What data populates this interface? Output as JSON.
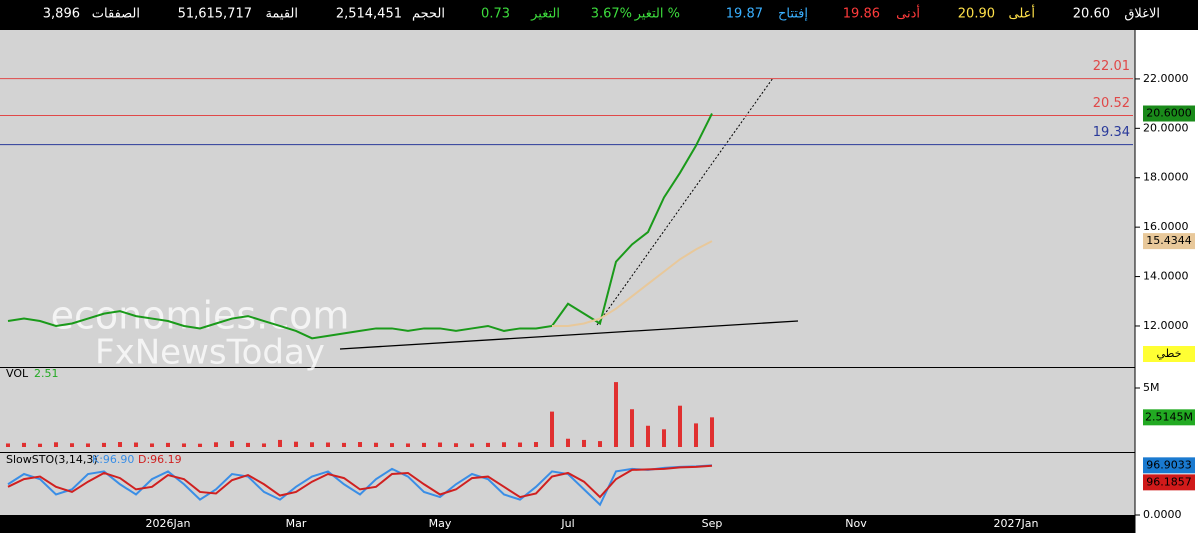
{
  "header": {
    "fields": [
      {
        "label": "الاغلاق",
        "value": "20.60",
        "color": "#ffffff"
      },
      {
        "label": "أعلى",
        "value": "20.90",
        "color": "#ffe14a"
      },
      {
        "label": "أدنى",
        "value": "19.86",
        "color": "#ff3b3b"
      },
      {
        "label": "إفتتاح",
        "value": "19.87",
        "color": "#3ab0ff"
      },
      {
        "label": "التغير %",
        "value": "3.67%",
        "color": "#3ddc3d"
      },
      {
        "label": "التغير",
        "value": "0.73",
        "color": "#3ddc3d"
      },
      {
        "label": "الحجم",
        "value": "2,514,451",
        "color": "#ffffff"
      },
      {
        "label": "القيمة",
        "value": "51,615,717",
        "color": "#ffffff"
      },
      {
        "label": "الصفقات",
        "value": "3,896",
        "color": "#ffffff"
      }
    ]
  },
  "watermark": [
    "economies.com",
    "FxNewsToday"
  ],
  "chart_data": [
    {
      "type": "line",
      "scale_mode": "خطي",
      "categories": [
        null,
        null,
        null,
        null,
        null,
        null,
        null,
        null,
        null,
        null,
        "2026Jan",
        null,
        null,
        null,
        null,
        null,
        null,
        null,
        "Mar",
        null,
        null,
        null,
        null,
        null,
        null,
        null,
        null,
        "May",
        null,
        null,
        null,
        null,
        null,
        null,
        null,
        "Jul",
        null,
        null,
        null,
        null,
        null,
        null,
        null,
        null,
        "Sep",
        null,
        null,
        null,
        null,
        null,
        null,
        null,
        null,
        "Nov",
        null,
        null,
        null,
        null,
        null,
        null,
        null,
        null,
        null,
        "2027Jan",
        null,
        null,
        null,
        null,
        null,
        null,
        null
      ],
      "series": [
        {
          "color": "#1a9a1a",
          "values": [
            12.2,
            12.3,
            12.2,
            12.0,
            12.1,
            12.3,
            12.5,
            12.6,
            12.4,
            12.3,
            12.2,
            12.0,
            11.9,
            12.1,
            12.3,
            12.4,
            12.2,
            12.0,
            11.8,
            11.5,
            11.6,
            11.7,
            11.8,
            11.9,
            11.9,
            11.8,
            11.9,
            11.9,
            11.8,
            11.9,
            12.0,
            11.8,
            11.9,
            11.9,
            12.0,
            12.9,
            12.5,
            12.1,
            14.6,
            15.3,
            15.8,
            17.2,
            18.2,
            19.3,
            20.6,
            null,
            null,
            null,
            null,
            null,
            null,
            null,
            null,
            null,
            null,
            null,
            null,
            null,
            null,
            null,
            null,
            null,
            null,
            null,
            null,
            null,
            null,
            null,
            null,
            null,
            null
          ]
        },
        {
          "color": "#e8c89a",
          "values": [
            null,
            null,
            null,
            null,
            null,
            null,
            null,
            null,
            null,
            null,
            null,
            null,
            null,
            null,
            null,
            null,
            null,
            null,
            null,
            null,
            null,
            null,
            null,
            null,
            null,
            null,
            null,
            null,
            null,
            null,
            null,
            null,
            null,
            null,
            12.0,
            12.0,
            12.1,
            12.3,
            12.7,
            13.2,
            13.7,
            14.2,
            14.7,
            15.1,
            15.4344,
            null,
            null,
            null,
            null,
            null,
            null,
            null,
            null,
            null,
            null,
            null,
            null,
            null,
            null,
            null,
            null,
            null,
            null,
            null,
            null,
            null,
            null,
            null,
            null,
            null,
            null
          ]
        }
      ],
      "hlines": [
        {
          "value": 22.01,
          "color": "#e04848"
        },
        {
          "value": 20.52,
          "color": "#e04848"
        },
        {
          "value": 19.34,
          "color": "#2a3a9a"
        }
      ],
      "tags": [
        {
          "value": 20.6,
          "label": "20.6000",
          "color": "#1a8a1a"
        },
        {
          "value": 15.4344,
          "label": "15.4344",
          "color": "#e8c89a"
        }
      ],
      "ylim": [
        10.38,
        23.98
      ],
      "yticks": [
        {
          "value": 12,
          "label": "12.0000"
        },
        {
          "value": 14,
          "label": "14.0000"
        },
        {
          "value": 16,
          "label": "16.0000"
        },
        {
          "value": 18,
          "label": "18.0000"
        },
        {
          "value": 20,
          "label": "20.0000"
        },
        {
          "value": 22,
          "label": "22.0000"
        }
      ]
    },
    {
      "type": "bar",
      "title": "VOL",
      "legend_value": {
        "value": 2510000,
        "label": "2.51"
      },
      "color": "#e03030",
      "values": [
        300000,
        350000,
        280000,
        400000,
        320000,
        300000,
        350000,
        420000,
        380000,
        300000,
        350000,
        300000,
        280000,
        400000,
        500000,
        350000,
        300000,
        600000,
        450000,
        400000,
        380000,
        350000,
        420000,
        360000,
        330000,
        300000,
        350000,
        380000,
        320000,
        300000,
        350000,
        400000,
        380000,
        420000,
        3000000,
        700000,
        600000,
        500000,
        5500000,
        3200000,
        1800000,
        1500000,
        3500000,
        2000000,
        2514500,
        null,
        null,
        null,
        null,
        null,
        null,
        null,
        null,
        null,
        null,
        null,
        null,
        null,
        null,
        null,
        null,
        null,
        null,
        null,
        null,
        null,
        null,
        null,
        null,
        null,
        null
      ],
      "tags": [
        {
          "value": 2514500,
          "label": "2.5145M",
          "color": "#22aa22"
        }
      ],
      "ylim": [
        0,
        6780000
      ],
      "yticks": [
        {
          "value": 5000000,
          "label": "5M"
        }
      ]
    },
    {
      "type": "line",
      "title": "SlowSTO(3,14,3)",
      "series": [
        {
          "name": "K:96.90",
          "color": "#3a8ee6",
          "values": [
            60,
            80,
            70,
            40,
            50,
            80,
            85,
            60,
            40,
            70,
            85,
            60,
            30,
            50,
            80,
            75,
            45,
            30,
            55,
            75,
            85,
            60,
            40,
            70,
            90,
            75,
            45,
            35,
            60,
            80,
            70,
            40,
            30,
            55,
            85,
            80,
            50,
            20,
            85,
            90,
            88,
            92,
            94,
            95,
            96.9,
            null,
            null,
            null,
            null,
            null,
            null,
            null,
            null,
            null,
            null,
            null,
            null,
            null,
            null,
            null,
            null,
            null,
            null,
            null,
            null,
            null,
            null,
            null,
            null,
            null,
            null
          ]
        },
        {
          "name": "D:96.19",
          "color": "#d02020",
          "values": [
            55,
            70,
            75,
            55,
            45,
            65,
            82,
            72,
            50,
            55,
            78,
            70,
            45,
            42,
            68,
            78,
            60,
            38,
            45,
            65,
            80,
            72,
            50,
            55,
            80,
            82,
            60,
            40,
            50,
            72,
            75,
            55,
            35,
            42,
            75,
            82,
            65,
            35,
            70,
            88,
            89,
            90,
            93,
            94,
            96.19,
            null,
            null,
            null,
            null,
            null,
            null,
            null,
            null,
            null,
            null,
            null,
            null,
            null,
            null,
            null,
            null,
            null,
            null,
            null,
            null,
            null,
            null,
            null,
            null,
            null,
            null
          ]
        }
      ],
      "tags": [
        {
          "value": 96.9033,
          "label": "96.9033",
          "color": "#1a7ad0"
        },
        {
          "value": 96.1857,
          "label": "96.1857",
          "color": "#d01a1a"
        }
      ],
      "ylim": [
        0,
        121
      ],
      "yticks": [
        {
          "value": 0,
          "label": "0.0000"
        }
      ]
    }
  ]
}
